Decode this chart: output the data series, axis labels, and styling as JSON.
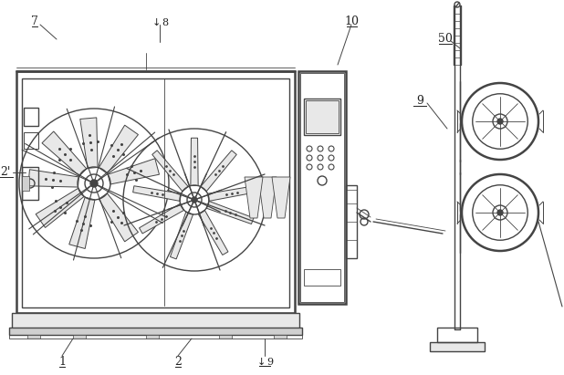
{
  "bg_color": "#ffffff",
  "line_color": "#444444",
  "label_color": "#222222",
  "fill_light": "#e8e8e8",
  "fill_med": "#d0d0d0",
  "fill_dark": "#aaaaaa"
}
